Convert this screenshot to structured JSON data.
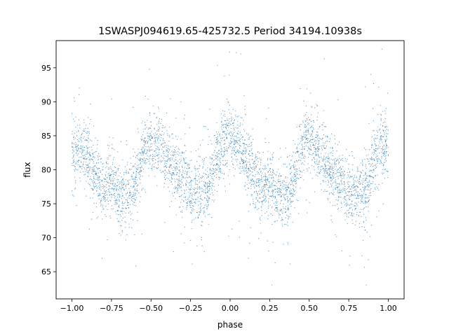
{
  "chart_data": {
    "type": "scatter",
    "title": "1SWASPJ094619.65-425732.5 Period 34194.10938s",
    "xlabel": "phase",
    "ylabel": "flux",
    "xlim": [
      -1.1,
      1.1
    ],
    "ylim": [
      61,
      99
    ],
    "xticks": [
      -1.0,
      -0.75,
      -0.5,
      -0.25,
      0.0,
      0.25,
      0.5,
      0.75,
      1.0
    ],
    "xtick_labels": [
      "−1.00",
      "−0.75",
      "−0.50",
      "−0.25",
      "0.00",
      "0.25",
      "0.50",
      "0.75",
      "1.00"
    ],
    "yticks": [
      65,
      70,
      75,
      80,
      85,
      90,
      95
    ],
    "ytick_labels": [
      "65",
      "70",
      "75",
      "80",
      "85",
      "90",
      "95"
    ],
    "grid": false,
    "legend": "none",
    "point_color": "#1f77b4",
    "series": [
      {
        "phase_range": [
          -1.0,
          1.0
        ],
        "points": [
          [
            -1.0,
            82.5
          ],
          [
            -0.95,
            83.0
          ],
          [
            -0.9,
            81.5
          ],
          [
            -0.85,
            79.0
          ],
          [
            -0.8,
            77.0
          ],
          [
            -0.75,
            78.5
          ],
          [
            -0.7,
            76.0
          ],
          [
            -0.65,
            76.0
          ],
          [
            -0.6,
            78.0
          ],
          [
            -0.55,
            83.0
          ],
          [
            -0.5,
            85.0
          ],
          [
            -0.45,
            83.5
          ],
          [
            -0.4,
            81.5
          ],
          [
            -0.35,
            79.5
          ],
          [
            -0.3,
            79.0
          ],
          [
            -0.25,
            76.5
          ],
          [
            -0.2,
            76.5
          ],
          [
            -0.15,
            77.0
          ],
          [
            -0.1,
            80.5
          ],
          [
            -0.05,
            84.0
          ],
          [
            0.0,
            85.5
          ],
          [
            0.05,
            83.5
          ],
          [
            0.1,
            81.5
          ],
          [
            0.15,
            79.0
          ],
          [
            0.2,
            77.0
          ],
          [
            0.25,
            78.5
          ],
          [
            0.3,
            76.0
          ],
          [
            0.35,
            76.0
          ],
          [
            0.4,
            78.0
          ],
          [
            0.45,
            83.0
          ],
          [
            0.5,
            85.0
          ],
          [
            0.55,
            83.5
          ],
          [
            0.6,
            81.5
          ],
          [
            0.65,
            79.5
          ],
          [
            0.7,
            79.0
          ],
          [
            0.75,
            76.5
          ],
          [
            0.8,
            76.5
          ],
          [
            0.85,
            77.0
          ],
          [
            0.9,
            80.5
          ],
          [
            0.95,
            84.0
          ],
          [
            1.0,
            83.0
          ]
        ]
      }
    ]
  }
}
